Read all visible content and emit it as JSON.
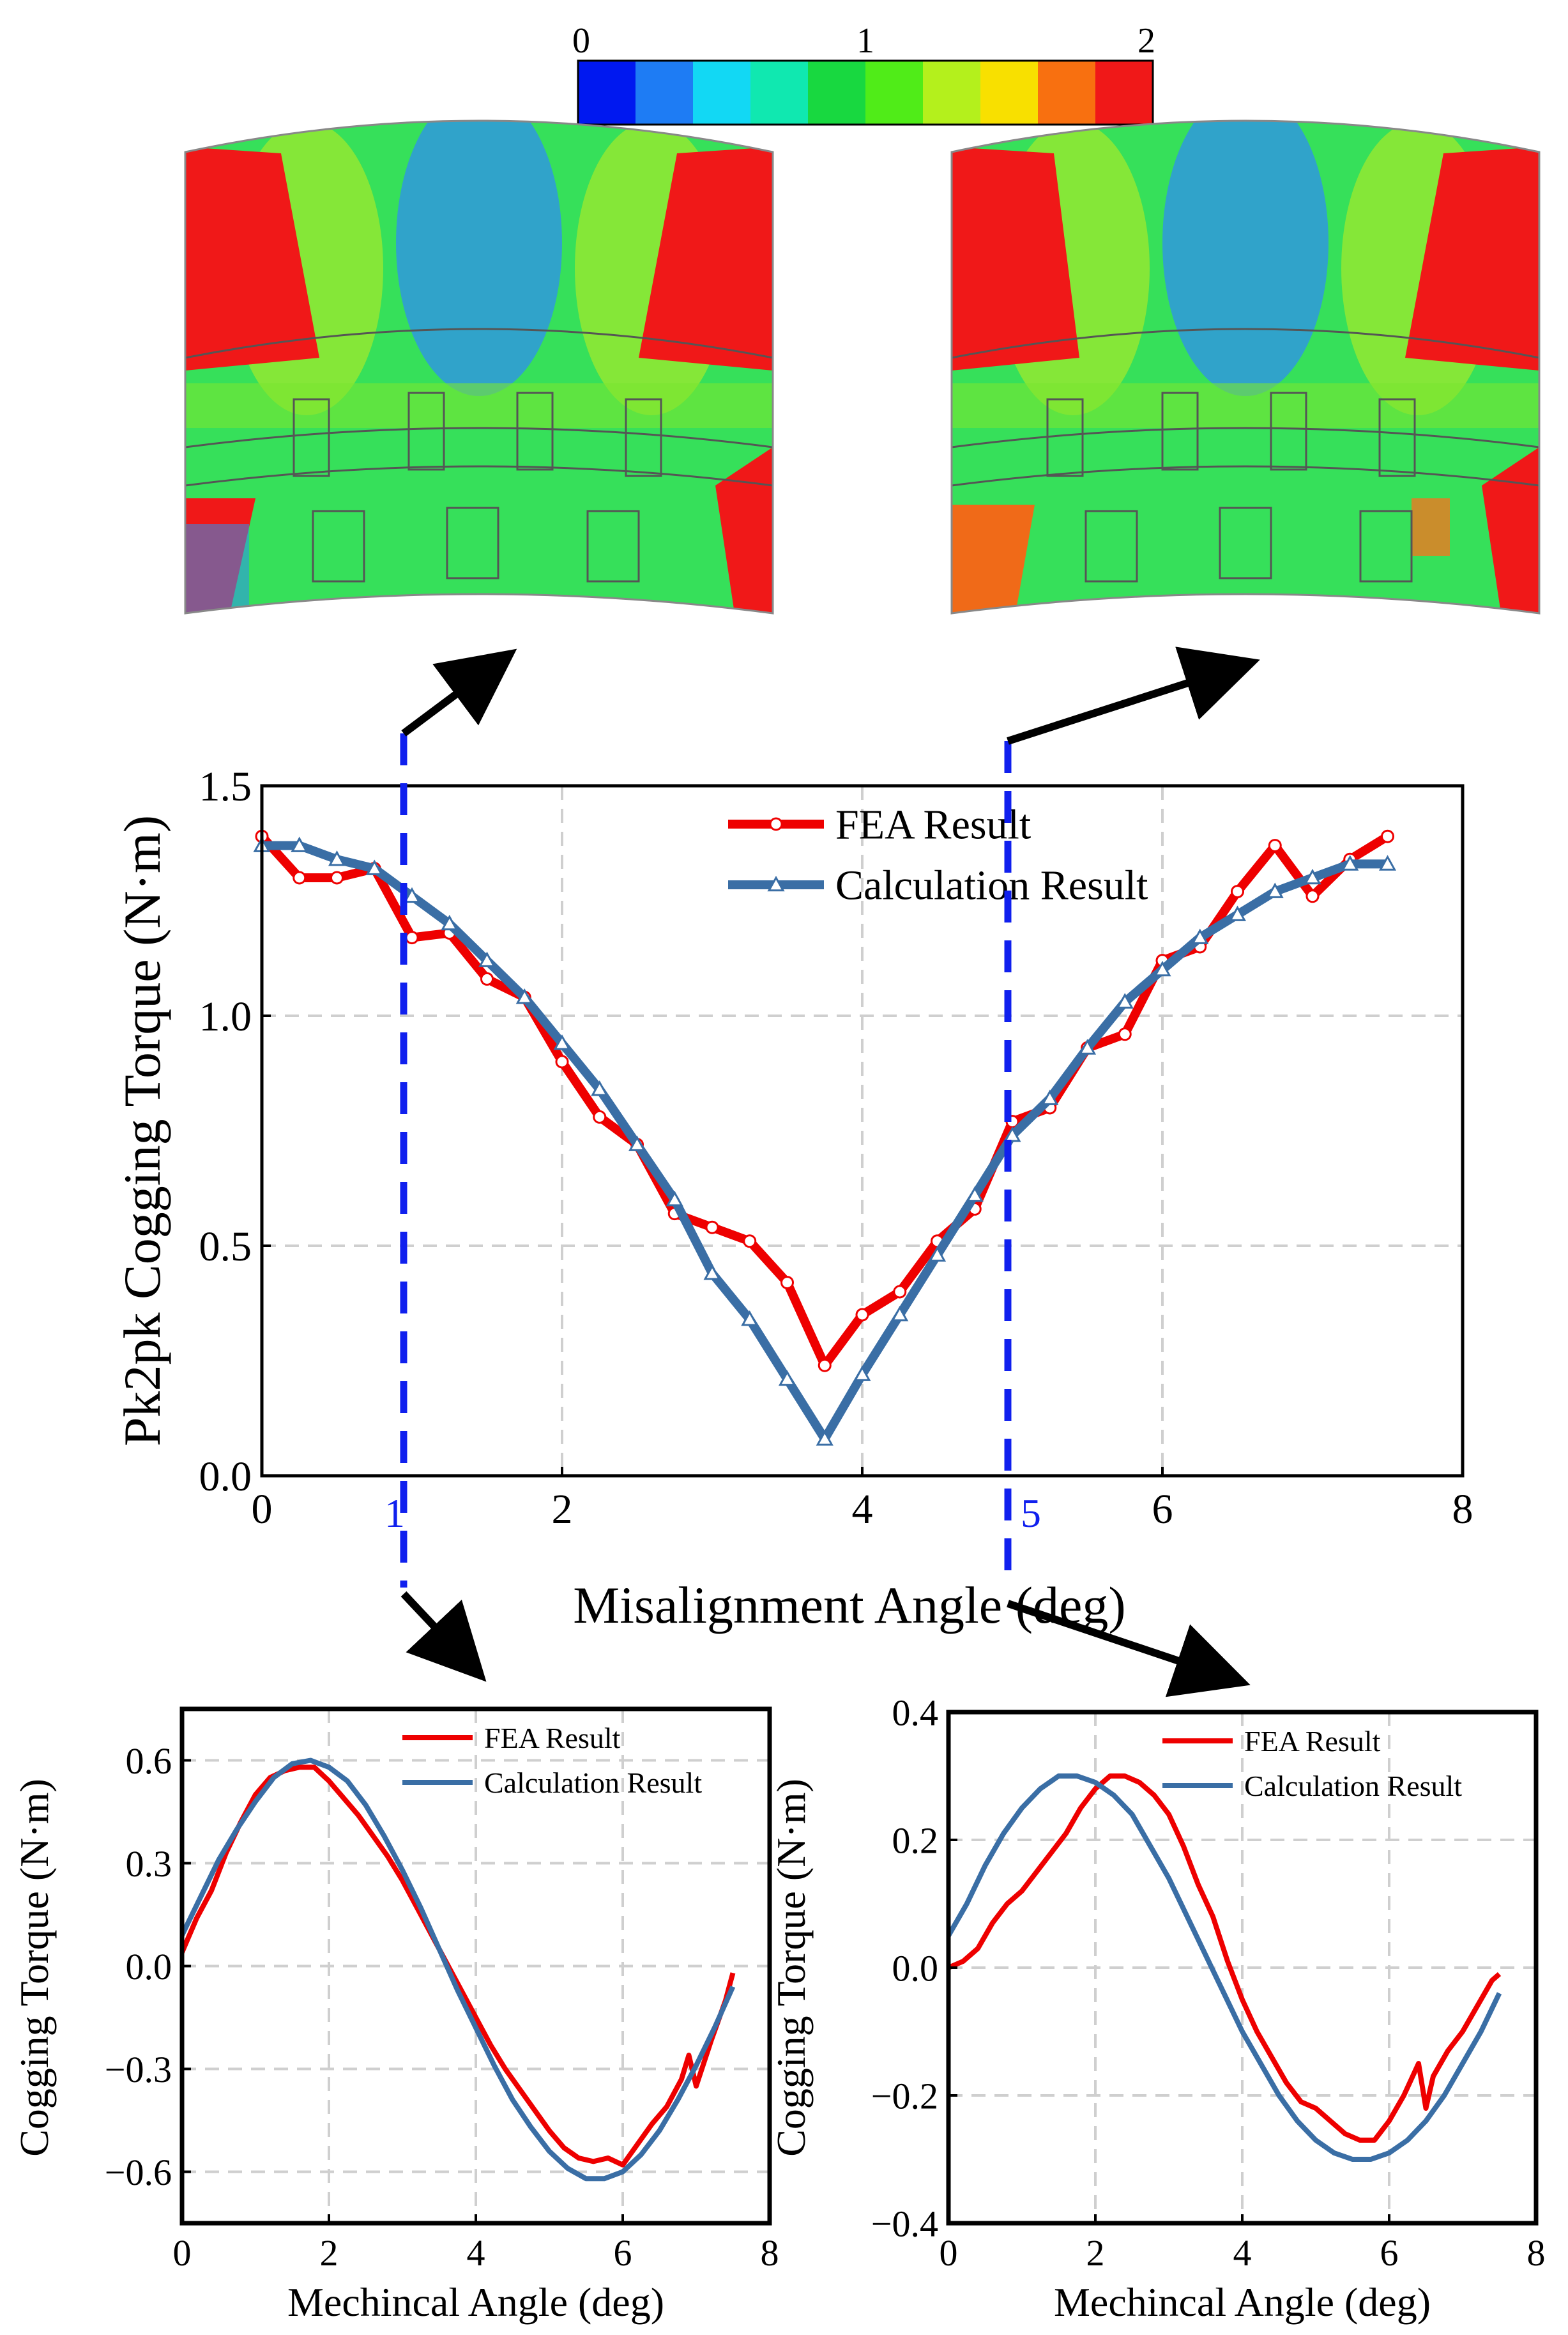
{
  "colorbar": {
    "ticks": [
      "0",
      "1",
      "2"
    ],
    "colors": [
      "#0018f0",
      "#1e7cf4",
      "#12d8f4",
      "#10e8b0",
      "#18d840",
      "#50ec18",
      "#b4f01c",
      "#f8e000",
      "#f87010",
      "#f01818"
    ]
  },
  "markers": {
    "left": "1",
    "right": "5"
  },
  "chart_data": [
    {
      "id": "main",
      "type": "line",
      "title": "",
      "xlabel": "Misalignment Angle (deg)",
      "ylabel": "Pk2pk Cogging Torque (N·m)",
      "xlim": [
        0,
        8
      ],
      "ylim": [
        0,
        1.5
      ],
      "xticks": [
        "0",
        "2",
        "4",
        "6",
        "8"
      ],
      "yticks": [
        "0.0",
        "0.5",
        "1.0",
        "1.5"
      ],
      "grid": true,
      "legend": "top-center",
      "series": [
        {
          "name": "FEA Result",
          "color": "#ee0000",
          "marker": "circle",
          "x": [
            0,
            0.25,
            0.5,
            0.75,
            1.0,
            1.25,
            1.5,
            1.75,
            2.0,
            2.25,
            2.5,
            2.75,
            3.0,
            3.25,
            3.5,
            3.75,
            4.0,
            4.25,
            4.5,
            4.75,
            5.0,
            5.25,
            5.5,
            5.75,
            6.0,
            6.25,
            6.5,
            6.75,
            7.0,
            7.25,
            7.5
          ],
          "y": [
            1.39,
            1.3,
            1.3,
            1.32,
            1.17,
            1.18,
            1.08,
            1.04,
            0.9,
            0.78,
            0.72,
            0.57,
            0.54,
            0.51,
            0.42,
            0.24,
            0.35,
            0.4,
            0.51,
            0.58,
            0.77,
            0.8,
            0.93,
            0.96,
            1.12,
            1.15,
            1.27,
            1.37,
            1.26,
            1.34,
            1.39
          ]
        },
        {
          "name": "Calculation Result",
          "color": "#3a6ea5",
          "marker": "triangle",
          "x": [
            0,
            0.25,
            0.5,
            0.75,
            1.0,
            1.25,
            1.5,
            1.75,
            2.0,
            2.25,
            2.5,
            2.75,
            3.0,
            3.25,
            3.5,
            3.75,
            4.0,
            4.25,
            4.5,
            4.75,
            5.0,
            5.25,
            5.5,
            5.75,
            6.0,
            6.25,
            6.5,
            6.75,
            7.0,
            7.25,
            7.5
          ],
          "y": [
            1.37,
            1.37,
            1.34,
            1.32,
            1.26,
            1.2,
            1.12,
            1.04,
            0.94,
            0.84,
            0.72,
            0.6,
            0.44,
            0.34,
            0.21,
            0.08,
            0.22,
            0.35,
            0.48,
            0.61,
            0.74,
            0.82,
            0.93,
            1.03,
            1.1,
            1.17,
            1.22,
            1.27,
            1.3,
            1.33,
            1.33
          ]
        }
      ]
    },
    {
      "id": "bl",
      "type": "line",
      "title": "",
      "xlabel": "Mechincal Angle (deg)",
      "ylabel": "Cogging Torque (N·m)",
      "xlim": [
        0,
        8
      ],
      "ylim": [
        -0.75,
        0.75
      ],
      "xticks": [
        "0",
        "2",
        "4",
        "6",
        "8"
      ],
      "yticks": [
        "0.6",
        "0.3",
        "0.0",
        "−0.3",
        "−0.6"
      ],
      "grid": true,
      "legend": "top-right",
      "series": [
        {
          "name": "FEA Result",
          "color": "#ee0000",
          "x": [
            0,
            0.2,
            0.4,
            0.6,
            0.8,
            1.0,
            1.2,
            1.4,
            1.6,
            1.8,
            2.0,
            2.2,
            2.4,
            2.6,
            2.8,
            3.0,
            3.2,
            3.4,
            3.6,
            3.8,
            4.0,
            4.2,
            4.4,
            4.6,
            4.8,
            5.0,
            5.2,
            5.4,
            5.6,
            5.8,
            6.0,
            6.2,
            6.4,
            6.6,
            6.8,
            6.9,
            7.0,
            7.2,
            7.4,
            7.5
          ],
          "y": [
            0.04,
            0.14,
            0.22,
            0.33,
            0.42,
            0.5,
            0.55,
            0.57,
            0.58,
            0.58,
            0.54,
            0.49,
            0.44,
            0.38,
            0.32,
            0.25,
            0.17,
            0.09,
            0.01,
            -0.07,
            -0.15,
            -0.23,
            -0.3,
            -0.36,
            -0.42,
            -0.48,
            -0.53,
            -0.56,
            -0.57,
            -0.56,
            -0.58,
            -0.52,
            -0.46,
            -0.41,
            -0.33,
            -0.26,
            -0.35,
            -0.22,
            -0.1,
            -0.02
          ]
        },
        {
          "name": "Calculation Result",
          "color": "#3a6ea5",
          "x": [
            0,
            0.25,
            0.5,
            0.75,
            1.0,
            1.25,
            1.5,
            1.75,
            2.0,
            2.25,
            2.5,
            2.75,
            3.0,
            3.25,
            3.5,
            3.75,
            4.0,
            4.25,
            4.5,
            4.75,
            5.0,
            5.25,
            5.5,
            5.75,
            6.0,
            6.25,
            6.5,
            6.75,
            7.0,
            7.25,
            7.5
          ],
          "y": [
            0.09,
            0.2,
            0.31,
            0.4,
            0.48,
            0.55,
            0.59,
            0.6,
            0.58,
            0.54,
            0.47,
            0.38,
            0.28,
            0.17,
            0.05,
            -0.07,
            -0.18,
            -0.29,
            -0.39,
            -0.47,
            -0.54,
            -0.59,
            -0.62,
            -0.62,
            -0.6,
            -0.55,
            -0.48,
            -0.39,
            -0.29,
            -0.18,
            -0.06
          ]
        }
      ]
    },
    {
      "id": "br",
      "type": "line",
      "title": "",
      "xlabel": "Mechincal Angle (deg)",
      "ylabel": "Cogging Torque (N·m)",
      "xlim": [
        0,
        8
      ],
      "ylim": [
        -0.4,
        0.4
      ],
      "xticks": [
        "0",
        "2",
        "4",
        "6",
        "8"
      ],
      "yticks": [
        "0.4",
        "0.2",
        "0.0",
        "−0.2",
        "−0.4"
      ],
      "grid": true,
      "legend": "top-right",
      "series": [
        {
          "name": "FEA Result",
          "color": "#ee0000",
          "x": [
            0,
            0.2,
            0.4,
            0.6,
            0.8,
            1.0,
            1.2,
            1.4,
            1.6,
            1.8,
            2.0,
            2.2,
            2.4,
            2.6,
            2.8,
            3.0,
            3.2,
            3.4,
            3.6,
            3.8,
            4.0,
            4.2,
            4.4,
            4.6,
            4.8,
            5.0,
            5.2,
            5.4,
            5.6,
            5.8,
            6.0,
            6.2,
            6.4,
            6.5,
            6.6,
            6.8,
            7.0,
            7.2,
            7.4,
            7.5
          ],
          "y": [
            0.0,
            0.01,
            0.03,
            0.07,
            0.1,
            0.12,
            0.15,
            0.18,
            0.21,
            0.25,
            0.28,
            0.3,
            0.3,
            0.29,
            0.27,
            0.24,
            0.19,
            0.13,
            0.08,
            0.01,
            -0.05,
            -0.1,
            -0.14,
            -0.18,
            -0.21,
            -0.22,
            -0.24,
            -0.26,
            -0.27,
            -0.27,
            -0.24,
            -0.2,
            -0.15,
            -0.22,
            -0.17,
            -0.13,
            -0.1,
            -0.06,
            -0.02,
            -0.01
          ]
        },
        {
          "name": "Calculation Result",
          "color": "#3a6ea5",
          "x": [
            0,
            0.25,
            0.5,
            0.75,
            1.0,
            1.25,
            1.5,
            1.75,
            2.0,
            2.25,
            2.5,
            2.75,
            3.0,
            3.25,
            3.5,
            3.75,
            4.0,
            4.25,
            4.5,
            4.75,
            5.0,
            5.25,
            5.5,
            5.75,
            6.0,
            6.25,
            6.5,
            6.75,
            7.0,
            7.25,
            7.5
          ],
          "y": [
            0.05,
            0.1,
            0.16,
            0.21,
            0.25,
            0.28,
            0.3,
            0.3,
            0.29,
            0.27,
            0.24,
            0.19,
            0.14,
            0.08,
            0.02,
            -0.04,
            -0.1,
            -0.15,
            -0.2,
            -0.24,
            -0.27,
            -0.29,
            -0.3,
            -0.3,
            -0.29,
            -0.27,
            -0.24,
            -0.2,
            -0.15,
            -0.1,
            -0.04
          ]
        }
      ]
    }
  ]
}
